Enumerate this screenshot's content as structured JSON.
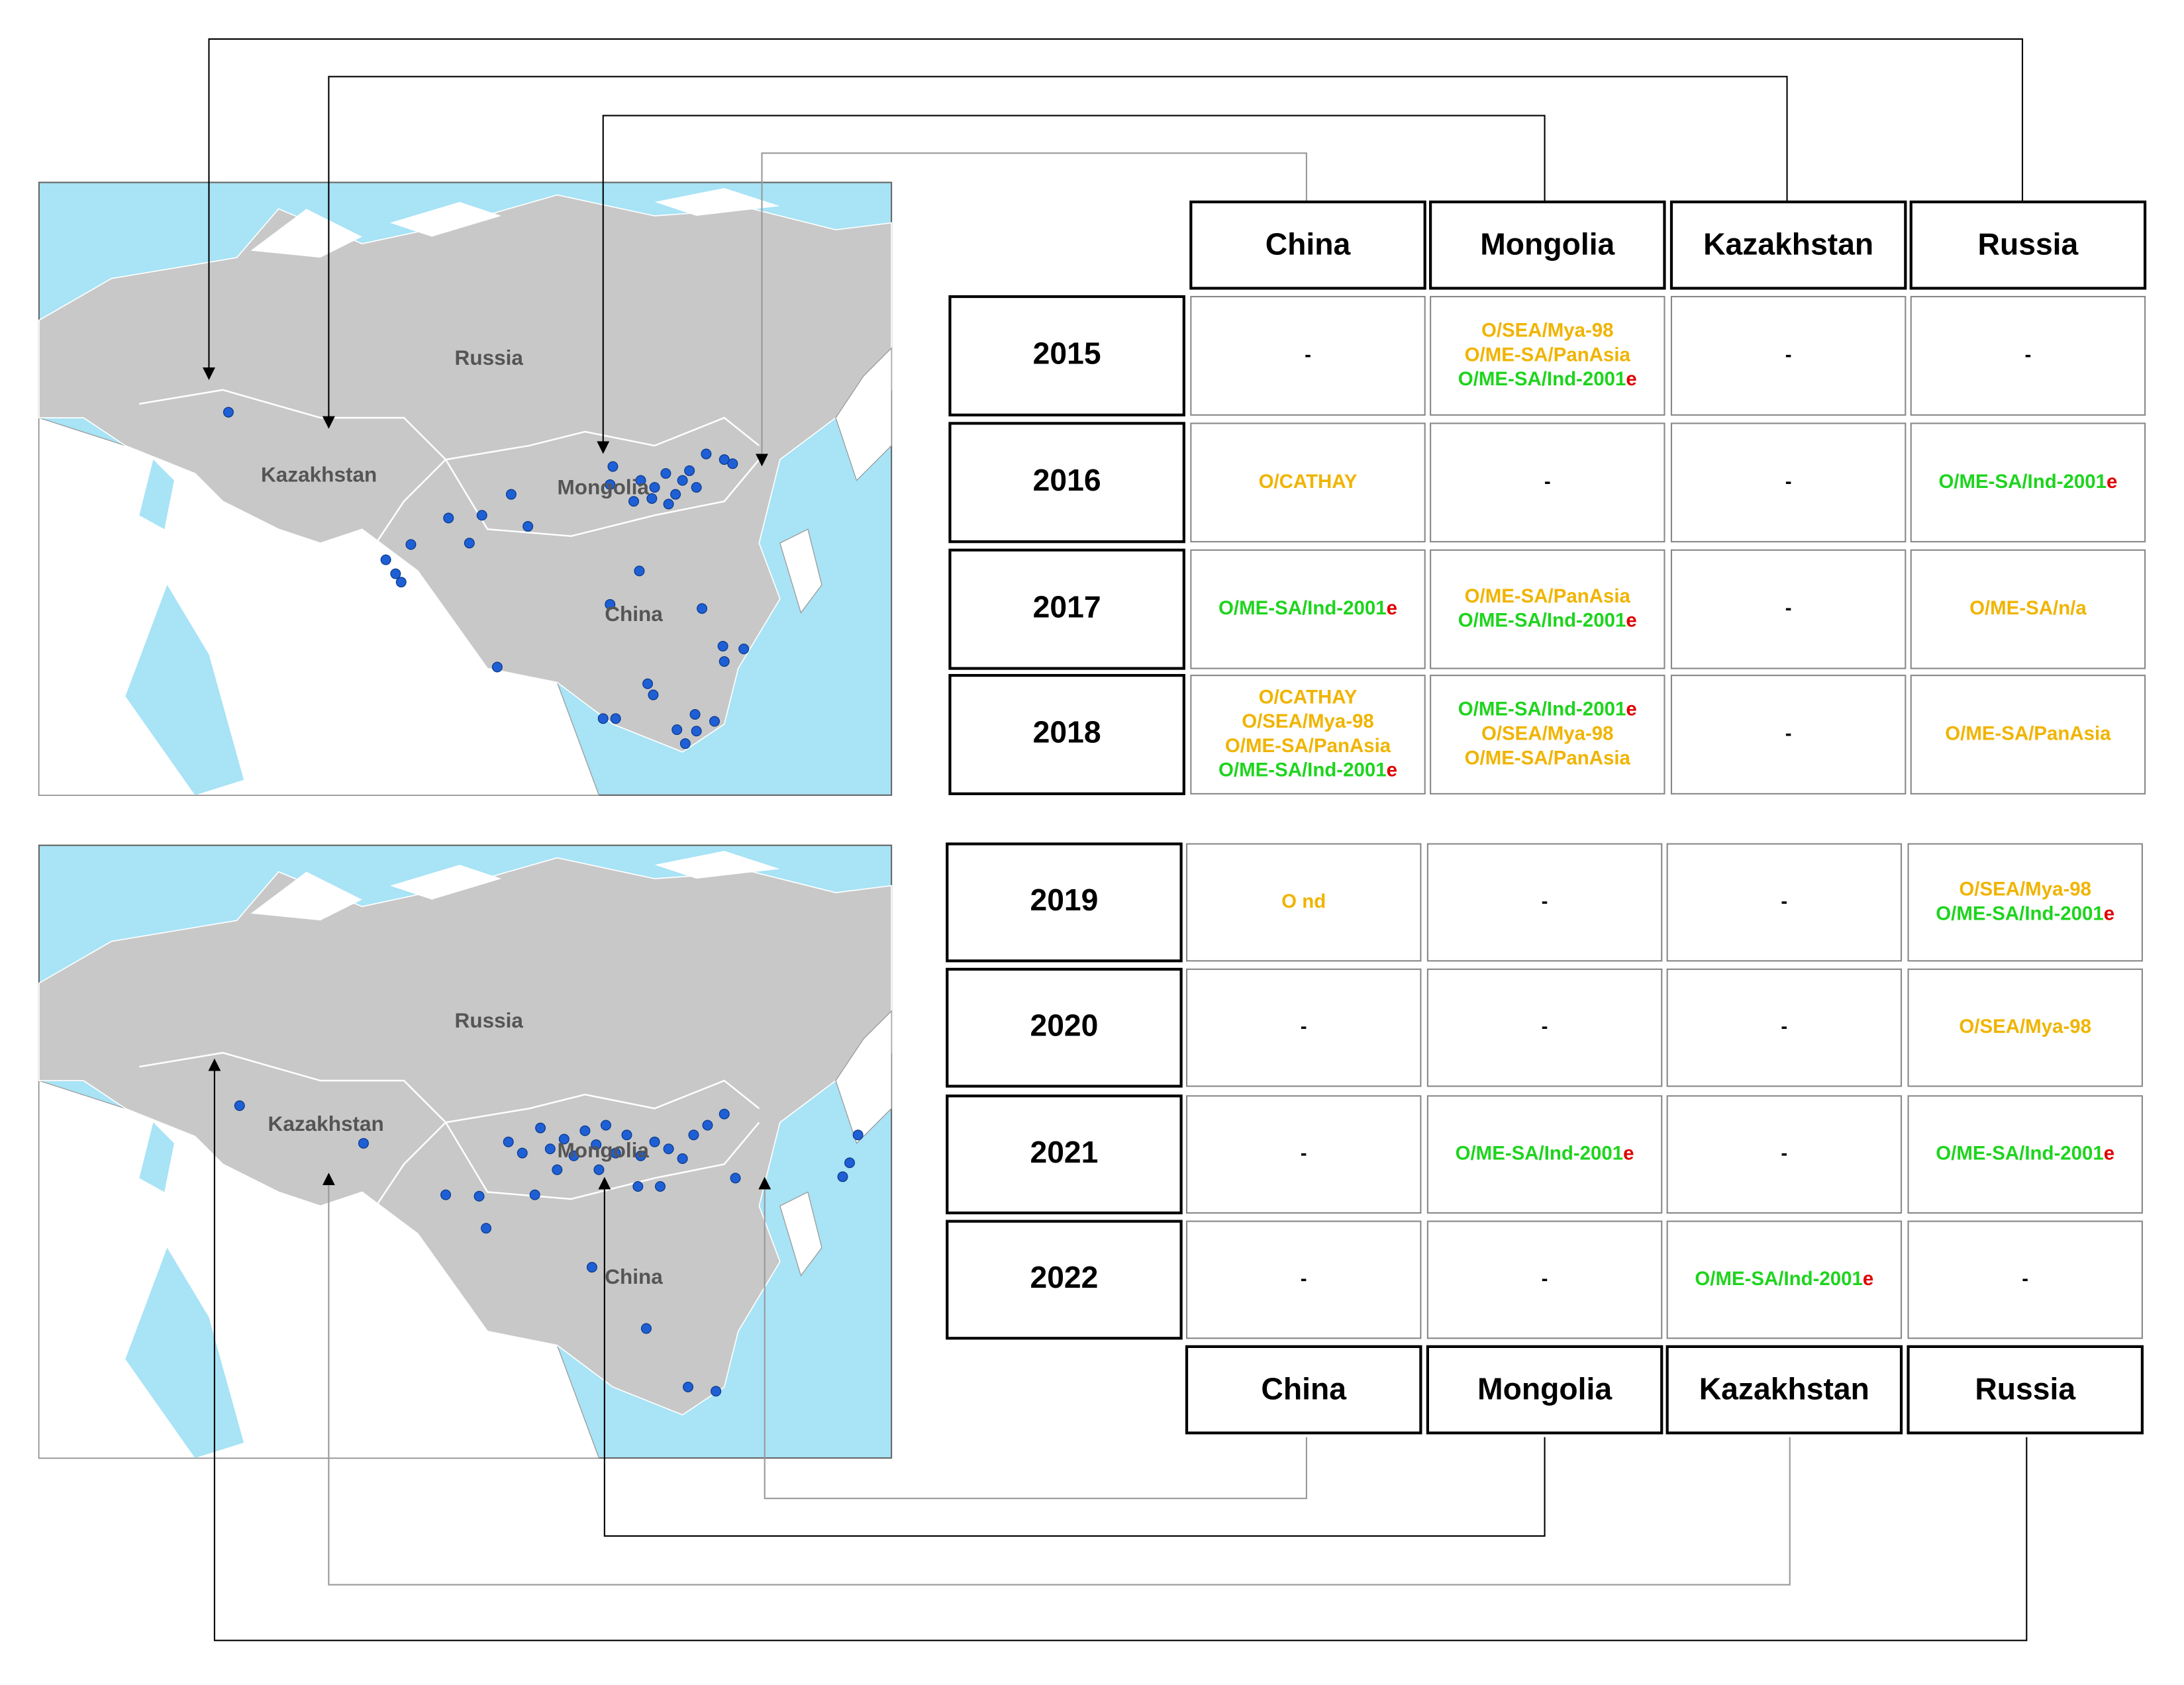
{
  "maps": [
    {
      "labels": [
        "Russia",
        "Kazakhstan",
        "Mongolia",
        "China"
      ]
    },
    {
      "labels": [
        "Russia",
        "Kazakhstan",
        "Mongolia",
        "China"
      ]
    }
  ],
  "mark_color": "#e00000",
  "table_top": {
    "columns": [
      "China",
      "Mongolia",
      "Kazakhstan",
      "Russia"
    ],
    "rows": [
      {
        "year": "2015",
        "cells": [
          [
            {
              "text": "-",
              "color": "#000000"
            }
          ],
          [
            {
              "text": "O/SEA/Mya-98",
              "color": "#f0b400"
            },
            {
              "text": "O/ME-SA/PanAsia",
              "color": "#f0b400"
            },
            {
              "text": "O/ME-SA/Ind-2001",
              "mark": "e",
              "color": "#1ed41e"
            }
          ],
          [
            {
              "text": "-",
              "color": "#000000"
            }
          ],
          [
            {
              "text": "-",
              "color": "#000000"
            }
          ]
        ]
      },
      {
        "year": "2016",
        "cells": [
          [
            {
              "text": "O/CATHAY",
              "color": "#f0b400"
            }
          ],
          [
            {
              "text": "-",
              "color": "#000000"
            }
          ],
          [
            {
              "text": "-",
              "color": "#000000"
            }
          ],
          [
            {
              "text": "O/ME-SA/Ind-2001",
              "mark": "e",
              "color": "#1ed41e"
            }
          ]
        ]
      },
      {
        "year": "2017",
        "cells": [
          [
            {
              "text": "O/ME-SA/Ind-2001",
              "mark": "e",
              "color": "#1ed41e"
            }
          ],
          [
            {
              "text": "O/ME-SA/PanAsia",
              "color": "#f0b400"
            },
            {
              "text": "O/ME-SA/Ind-2001",
              "mark": "e",
              "color": "#1ed41e"
            }
          ],
          [
            {
              "text": "-",
              "color": "#000000"
            }
          ],
          [
            {
              "text": "O/ME-SA/n/a",
              "color": "#f0b400"
            }
          ]
        ]
      },
      {
        "year": "2018",
        "cells": [
          [
            {
              "text": "O/CATHAY",
              "color": "#f0b400"
            },
            {
              "text": "O/SEA/Mya-98",
              "color": "#f0b400"
            },
            {
              "text": "O/ME-SA/PanAsia",
              "color": "#f0b400"
            },
            {
              "text": "O/ME-SA/Ind-2001",
              "mark": "e",
              "color": "#1ed41e"
            }
          ],
          [
            {
              "text": "O/ME-SA/Ind-2001",
              "mark": "e",
              "color": "#1ed41e"
            },
            {
              "text": "O/SEA/Mya-98",
              "color": "#f0b400"
            },
            {
              "text": "O/ME-SA/PanAsia",
              "color": "#f0b400"
            }
          ],
          [
            {
              "text": "-",
              "color": "#000000"
            }
          ],
          [
            {
              "text": "O/ME-SA/PanAsia",
              "color": "#f0b400"
            }
          ]
        ]
      }
    ]
  },
  "table_bottom": {
    "columns": [
      "China",
      "Mongolia",
      "Kazakhstan",
      "Russia"
    ],
    "rows": [
      {
        "year": "2019",
        "cells": [
          [
            {
              "text": "O nd",
              "color": "#f0b400"
            }
          ],
          [
            {
              "text": "-",
              "color": "#000000"
            }
          ],
          [
            {
              "text": "-",
              "color": "#000000"
            }
          ],
          [
            {
              "text": "O/SEA/Mya-98",
              "color": "#f0b400"
            },
            {
              "text": "O/ME-SA/Ind-2001",
              "mark": "e",
              "color": "#1ed41e"
            }
          ]
        ]
      },
      {
        "year": "2020",
        "cells": [
          [
            {
              "text": "-",
              "color": "#000000"
            }
          ],
          [
            {
              "text": "-",
              "color": "#000000"
            }
          ],
          [
            {
              "text": "-",
              "color": "#000000"
            }
          ],
          [
            {
              "text": "O/SEA/Mya-98",
              "color": "#f0b400"
            }
          ]
        ]
      },
      {
        "year": "2021",
        "cells": [
          [
            {
              "text": "-",
              "color": "#000000"
            }
          ],
          [
            {
              "text": "O/ME-SA/Ind-2001",
              "mark": "e",
              "color": "#1ed41e"
            }
          ],
          [
            {
              "text": "-",
              "color": "#000000"
            }
          ],
          [
            {
              "text": "O/ME-SA/Ind-2001",
              "mark": "e",
              "color": "#1ed41e"
            }
          ]
        ]
      },
      {
        "year": "2022",
        "cells": [
          [
            {
              "text": "-",
              "color": "#000000"
            }
          ],
          [
            {
              "text": "-",
              "color": "#000000"
            }
          ],
          [
            {
              "text": "O/ME-SA/Ind-2001",
              "mark": "e",
              "color": "#1ed41e"
            }
          ],
          [
            {
              "text": "-",
              "color": "#000000"
            }
          ]
        ]
      }
    ]
  }
}
